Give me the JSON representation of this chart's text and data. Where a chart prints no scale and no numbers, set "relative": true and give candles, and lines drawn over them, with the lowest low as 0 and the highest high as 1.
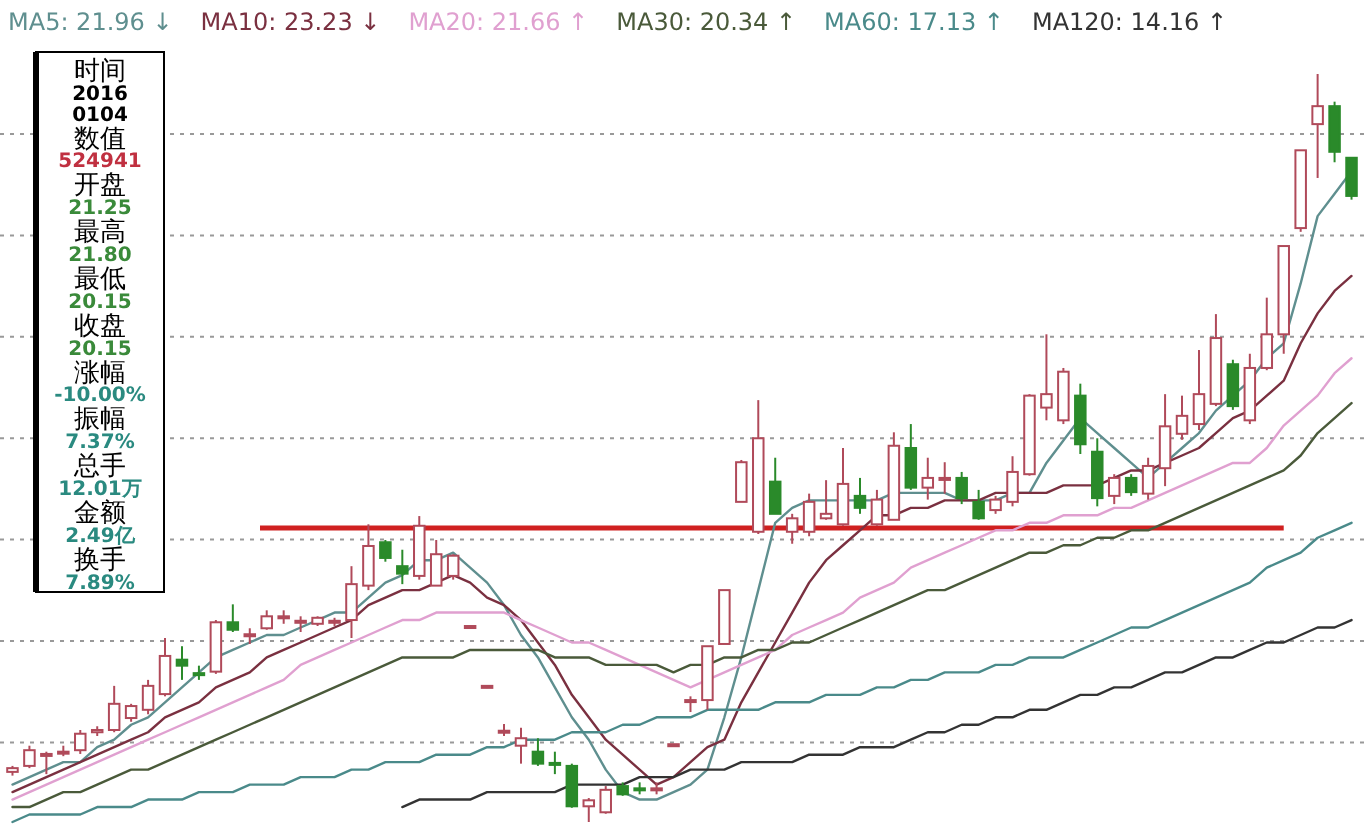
{
  "chart_data": {
    "type": "candlestick",
    "relative": true,
    "categories": [
      null,
      null,
      null,
      null,
      null,
      null,
      null,
      null,
      null,
      null,
      null,
      null,
      null,
      null,
      null,
      null,
      null,
      null,
      null,
      null,
      null,
      null,
      null,
      null,
      null,
      null,
      null,
      null,
      null,
      null,
      null,
      null,
      null,
      null,
      null,
      null,
      null,
      null,
      null,
      null,
      null,
      null,
      null,
      null,
      null,
      null,
      null,
      null,
      null,
      null,
      null,
      null,
      null,
      null,
      null,
      null,
      null,
      null,
      null,
      null,
      null,
      null,
      null,
      null,
      null,
      null,
      null,
      null,
      null,
      null,
      null,
      null,
      null,
      null,
      null,
      null,
      null,
      null,
      null,
      null
    ],
    "ohlc": [
      [
        0.067,
        0.075,
        0.062,
        0.072
      ],
      [
        0.075,
        0.102,
        0.072,
        0.096
      ],
      [
        0.09,
        0.094,
        0.064,
        0.091
      ],
      [
        0.092,
        0.102,
        0.088,
        0.094
      ],
      [
        0.096,
        0.123,
        0.091,
        0.118
      ],
      [
        0.12,
        0.128,
        0.115,
        0.123
      ],
      [
        0.123,
        0.182,
        0.12,
        0.158
      ],
      [
        0.139,
        0.158,
        0.134,
        0.155
      ],
      [
        0.15,
        0.19,
        0.144,
        0.182
      ],
      [
        0.171,
        0.246,
        0.168,
        0.222
      ],
      [
        0.217,
        0.235,
        0.19,
        0.209
      ],
      [
        0.199,
        0.209,
        0.19,
        0.198
      ],
      [
        0.201,
        0.27,
        0.198,
        0.267
      ],
      [
        0.267,
        0.291,
        0.254,
        0.257
      ],
      [
        0.25,
        0.259,
        0.238,
        0.251
      ],
      [
        0.259,
        0.283,
        0.257,
        0.275
      ],
      [
        0.274,
        0.283,
        0.265,
        0.275
      ],
      [
        0.267,
        0.275,
        0.254,
        0.269
      ],
      [
        0.265,
        0.275,
        0.262,
        0.273
      ],
      [
        0.267,
        0.273,
        0.262,
        0.269
      ],
      [
        0.27,
        0.342,
        0.246,
        0.318
      ],
      [
        0.316,
        0.398,
        0.31,
        0.369
      ],
      [
        0.374,
        0.377,
        0.348,
        0.353
      ],
      [
        0.342,
        0.364,
        0.318,
        0.332
      ],
      [
        0.329,
        0.409,
        0.324,
        0.396
      ],
      [
        0.316,
        0.377,
        0.316,
        0.358
      ],
      [
        0.329,
        0.358,
        0.324,
        0.356
      ],
      [
        0.261,
        0.262,
        0.259,
        0.262
      ],
      [
        0.18,
        0.182,
        0.179,
        0.182
      ],
      [
        0.12,
        0.131,
        0.115,
        0.122
      ],
      [
        0.102,
        0.126,
        0.078,
        0.112
      ],
      [
        0.094,
        0.112,
        0.075,
        0.078
      ],
      [
        0.079,
        0.094,
        0.064,
        0.078
      ],
      [
        0.075,
        0.078,
        0.019,
        0.021
      ],
      [
        0.021,
        0.032,
        0.0,
        0.029
      ],
      [
        0.013,
        0.048,
        0.011,
        0.043
      ],
      [
        0.048,
        0.053,
        0.035,
        0.037
      ],
      [
        0.045,
        0.053,
        0.037,
        0.044
      ],
      [
        0.044,
        0.053,
        0.037,
        0.045
      ],
      [
        0.103,
        0.104,
        0.102,
        0.104
      ],
      [
        0.162,
        0.168,
        0.147,
        0.163
      ],
      [
        0.163,
        0.235,
        0.15,
        0.235
      ],
      [
        0.238,
        0.31,
        0.238,
        0.31
      ],
      [
        0.428,
        0.484,
        0.428,
        0.481
      ],
      [
        0.388,
        0.564,
        0.385,
        0.513
      ],
      [
        0.455,
        0.487,
        0.412,
        0.412
      ],
      [
        0.388,
        0.412,
        0.372,
        0.406
      ],
      [
        0.388,
        0.439,
        0.382,
        0.428
      ],
      [
        0.406,
        0.457,
        0.404,
        0.412
      ],
      [
        0.398,
        0.5,
        0.396,
        0.452
      ],
      [
        0.436,
        0.46,
        0.412,
        0.42
      ],
      [
        0.398,
        0.444,
        0.396,
        0.431
      ],
      [
        0.404,
        0.521,
        0.404,
        0.503
      ],
      [
        0.5,
        0.532,
        0.444,
        0.447
      ],
      [
        0.447,
        0.487,
        0.431,
        0.46
      ],
      [
        0.459,
        0.481,
        0.439,
        0.46
      ],
      [
        0.46,
        0.468,
        0.425,
        0.433
      ],
      [
        0.428,
        0.444,
        0.404,
        0.406
      ],
      [
        0.417,
        0.436,
        0.412,
        0.431
      ],
      [
        0.428,
        0.489,
        0.422,
        0.468
      ],
      [
        0.465,
        0.572,
        0.463,
        0.57
      ],
      [
        0.554,
        0.652,
        0.537,
        0.572
      ],
      [
        0.537,
        0.607,
        0.532,
        0.602
      ],
      [
        0.57,
        0.586,
        0.492,
        0.505
      ],
      [
        0.495,
        0.513,
        0.422,
        0.433
      ],
      [
        0.436,
        0.465,
        0.425,
        0.46
      ],
      [
        0.46,
        0.465,
        0.436,
        0.441
      ],
      [
        0.439,
        0.487,
        0.431,
        0.476
      ],
      [
        0.473,
        0.572,
        0.449,
        0.529
      ],
      [
        0.519,
        0.57,
        0.511,
        0.543
      ],
      [
        0.532,
        0.631,
        0.524,
        0.572
      ],
      [
        0.559,
        0.679,
        0.556,
        0.647
      ],
      [
        0.612,
        0.618,
        0.551,
        0.556
      ],
      [
        0.537,
        0.626,
        0.532,
        0.607
      ],
      [
        0.607,
        0.701,
        0.604,
        0.652
      ],
      [
        0.652,
        0.77,
        0.626,
        0.77
      ],
      [
        0.794,
        0.898,
        0.789,
        0.898
      ],
      [
        0.933,
        1.0,
        0.861,
        0.957
      ],
      [
        0.957,
        0.963,
        0.882,
        0.896
      ],
      [
        0.888,
        0.888,
        0.832,
        0.837
      ]
    ],
    "colors": [
      "#b04a5a",
      "#b04a5a",
      "#b04a5a",
      "#b04a5a",
      "#b04a5a",
      "#b04a5a",
      "#b04a5a",
      "#b04a5a",
      "#b04a5a",
      "#b04a5a",
      "#2a8a2a",
      "#2a8a2a",
      "#b04a5a",
      "#2a8a2a",
      "#b04a5a",
      "#b04a5a",
      "#b04a5a",
      "#b04a5a",
      "#b04a5a",
      "#b04a5a",
      "#b04a5a",
      "#b04a5a",
      "#2a8a2a",
      "#2a8a2a",
      "#b04a5a",
      "#b04a5a",
      "#b04a5a",
      "#b04a5a",
      "#b04a5a",
      "#b04a5a",
      "#b04a5a",
      "#2a8a2a",
      "#2a8a2a",
      "#2a8a2a",
      "#b04a5a",
      "#b04a5a",
      "#2a8a2a",
      "#2a8a2a",
      "#b04a5a",
      "#b04a5a",
      "#b04a5a",
      "#b04a5a",
      "#b04a5a",
      "#b04a5a",
      "#b04a5a",
      "#2a8a2a",
      "#b04a5a",
      "#b04a5a",
      "#b04a5a",
      "#b04a5a",
      "#2a8a2a",
      "#b04a5a",
      "#b04a5a",
      "#2a8a2a",
      "#b04a5a",
      "#b04a5a",
      "#2a8a2a",
      "#2a8a2a",
      "#b04a5a",
      "#b04a5a",
      "#b04a5a",
      "#b04a5a",
      "#b04a5a",
      "#2a8a2a",
      "#2a8a2a",
      "#b04a5a",
      "#2a8a2a",
      "#b04a5a",
      "#b04a5a",
      "#b04a5a",
      "#b04a5a",
      "#b04a5a",
      "#2a8a2a",
      "#b04a5a",
      "#b04a5a",
      "#b04a5a",
      "#b04a5a",
      "#b04a5a",
      "#2a8a2a",
      "#2a8a2a"
    ],
    "series": [
      {
        "type": "line",
        "name": "MA5: 21.96 ↓",
        "color": "#5f8f8f",
        "values": [
          0.05,
          0.06,
          0.07,
          0.08,
          0.08,
          0.1,
          0.11,
          0.13,
          0.14,
          0.16,
          0.18,
          0.2,
          0.22,
          0.23,
          0.24,
          0.25,
          0.25,
          0.26,
          0.27,
          0.28,
          0.28,
          0.3,
          0.32,
          0.33,
          0.35,
          0.35,
          0.36,
          0.34,
          0.32,
          0.29,
          0.25,
          0.22,
          0.18,
          0.14,
          0.11,
          0.07,
          0.04,
          0.03,
          0.03,
          0.04,
          0.05,
          0.07,
          0.14,
          0.22,
          0.31,
          0.4,
          0.42,
          0.43,
          0.43,
          0.43,
          0.43,
          0.43,
          0.44,
          0.44,
          0.44,
          0.44,
          0.43,
          0.43,
          0.43,
          0.44,
          0.44,
          0.48,
          0.51,
          0.54,
          0.52,
          0.5,
          0.48,
          0.46,
          0.48,
          0.5,
          0.52,
          0.55,
          0.57,
          0.59,
          0.62,
          0.64,
          0.72,
          0.81,
          0.84,
          0.87
        ]
      },
      {
        "type": "line",
        "name": "MA10: 23.23 ↓",
        "color": "#7a3040",
        "values": [
          0.04,
          0.05,
          0.06,
          0.07,
          0.08,
          0.09,
          0.1,
          0.11,
          0.12,
          0.14,
          0.15,
          0.16,
          0.18,
          0.19,
          0.2,
          0.22,
          0.23,
          0.24,
          0.25,
          0.26,
          0.27,
          0.29,
          0.3,
          0.31,
          0.31,
          0.32,
          0.33,
          0.32,
          0.3,
          0.29,
          0.27,
          0.24,
          0.21,
          0.17,
          0.14,
          0.11,
          0.09,
          0.07,
          0.05,
          0.06,
          0.08,
          0.1,
          0.11,
          0.16,
          0.2,
          0.24,
          0.28,
          0.32,
          0.35,
          0.37,
          0.39,
          0.41,
          0.41,
          0.42,
          0.42,
          0.43,
          0.43,
          0.43,
          0.44,
          0.44,
          0.44,
          0.44,
          0.45,
          0.45,
          0.45,
          0.46,
          0.47,
          0.47,
          0.48,
          0.49,
          0.5,
          0.52,
          0.54,
          0.55,
          0.57,
          0.59,
          0.64,
          0.68,
          0.71,
          0.73
        ]
      },
      {
        "type": "line",
        "name": "MA20: 21.66 ↑",
        "color": "#e0a0d0",
        "values": [
          0.03,
          0.04,
          0.05,
          0.06,
          0.07,
          0.08,
          0.09,
          0.1,
          0.11,
          0.12,
          0.13,
          0.14,
          0.15,
          0.16,
          0.17,
          0.18,
          0.19,
          0.21,
          0.22,
          0.23,
          0.24,
          0.25,
          0.26,
          0.27,
          0.27,
          0.28,
          0.28,
          0.28,
          0.28,
          0.28,
          0.27,
          0.26,
          0.25,
          0.24,
          0.24,
          0.23,
          0.22,
          0.21,
          0.2,
          0.19,
          0.18,
          0.19,
          0.2,
          0.21,
          0.22,
          0.23,
          0.25,
          0.26,
          0.27,
          0.28,
          0.3,
          0.31,
          0.32,
          0.34,
          0.35,
          0.36,
          0.37,
          0.38,
          0.39,
          0.39,
          0.4,
          0.4,
          0.41,
          0.41,
          0.41,
          0.42,
          0.42,
          0.43,
          0.44,
          0.45,
          0.46,
          0.47,
          0.48,
          0.48,
          0.5,
          0.53,
          0.55,
          0.57,
          0.6,
          0.62
        ]
      },
      {
        "type": "line",
        "name": "MA30: 20.34 ↑",
        "color": "#4a5a3a",
        "values": [
          0.02,
          0.02,
          0.03,
          0.04,
          0.04,
          0.05,
          0.06,
          0.07,
          0.07,
          0.08,
          0.09,
          0.1,
          0.11,
          0.12,
          0.13,
          0.14,
          0.15,
          0.16,
          0.17,
          0.18,
          0.19,
          0.2,
          0.21,
          0.22,
          0.22,
          0.22,
          0.22,
          0.23,
          0.23,
          0.23,
          0.23,
          0.23,
          0.22,
          0.22,
          0.22,
          0.21,
          0.21,
          0.21,
          0.21,
          0.2,
          0.21,
          0.21,
          0.22,
          0.22,
          0.23,
          0.23,
          0.24,
          0.24,
          0.25,
          0.26,
          0.27,
          0.28,
          0.29,
          0.3,
          0.31,
          0.31,
          0.32,
          0.33,
          0.34,
          0.35,
          0.36,
          0.36,
          0.37,
          0.37,
          0.38,
          0.38,
          0.39,
          0.39,
          0.4,
          0.41,
          0.42,
          0.43,
          0.44,
          0.45,
          0.46,
          0.47,
          0.49,
          0.52,
          0.54,
          0.56
        ]
      },
      {
        "type": "line",
        "name": "MA60: 17.13 ↑",
        "color": "#4a8a8a",
        "values": [
          0.0,
          0.01,
          0.01,
          0.01,
          0.01,
          0.02,
          0.02,
          0.02,
          0.03,
          0.03,
          0.03,
          0.04,
          0.04,
          0.04,
          0.05,
          0.05,
          0.05,
          0.06,
          0.06,
          0.06,
          0.07,
          0.07,
          0.08,
          0.08,
          0.08,
          0.09,
          0.09,
          0.09,
          0.1,
          0.1,
          0.11,
          0.11,
          0.11,
          0.12,
          0.12,
          0.12,
          0.13,
          0.13,
          0.14,
          0.14,
          0.14,
          0.15,
          0.15,
          0.15,
          0.15,
          0.16,
          0.16,
          0.16,
          0.17,
          0.17,
          0.17,
          0.18,
          0.18,
          0.19,
          0.19,
          0.2,
          0.2,
          0.2,
          0.21,
          0.21,
          0.22,
          0.22,
          0.22,
          0.23,
          0.24,
          0.25,
          0.26,
          0.26,
          0.27,
          0.28,
          0.29,
          0.3,
          0.31,
          0.32,
          0.34,
          0.35,
          0.36,
          0.38,
          0.39,
          0.4
        ]
      },
      {
        "type": "line",
        "name": "MA120: 14.16 ↑",
        "color": "#333333",
        "values": [
          null,
          null,
          null,
          null,
          null,
          null,
          null,
          null,
          null,
          null,
          null,
          null,
          null,
          null,
          null,
          null,
          null,
          null,
          null,
          null,
          null,
          null,
          null,
          0.02,
          0.03,
          0.03,
          0.03,
          0.03,
          0.04,
          0.04,
          0.04,
          0.04,
          0.04,
          0.05,
          0.05,
          0.05,
          0.05,
          0.06,
          0.06,
          0.06,
          0.07,
          0.07,
          0.07,
          0.08,
          0.08,
          0.08,
          0.08,
          0.09,
          0.09,
          0.09,
          0.1,
          0.1,
          0.1,
          0.11,
          0.12,
          0.12,
          0.13,
          0.13,
          0.14,
          0.14,
          0.15,
          0.15,
          0.16,
          0.17,
          0.17,
          0.18,
          0.18,
          0.19,
          0.2,
          0.2,
          0.21,
          0.22,
          0.22,
          0.23,
          0.24,
          0.24,
          0.25,
          0.26,
          0.26,
          0.27
        ]
      }
    ],
    "ref_lines": [
      {
        "axis": "y",
        "value": 0.393,
        "color": "#d02020"
      }
    ],
    "grid": true,
    "legend": "top",
    "annotations": [
      "时间",
      "2016",
      "0104",
      "数值",
      "524941",
      "开盘",
      "21.25",
      "最高",
      "21.80",
      "最低",
      "20.15",
      "收盘",
      "20.15",
      "涨幅",
      "-10.00%",
      "振幅",
      "7.37%",
      "总手",
      "12.01万",
      "金额",
      "2.49亿",
      "换手",
      "7.89%"
    ]
  }
}
